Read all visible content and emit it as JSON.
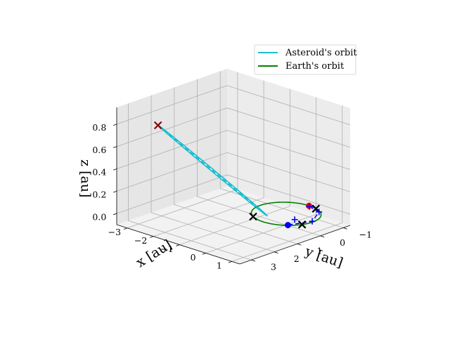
{
  "chart_data": {
    "type": "line3d",
    "title": "",
    "xlabel": "x [au]",
    "ylabel": "y [au]",
    "zlabel": "z [au]",
    "xlim": [
      -3.4,
      1.3
    ],
    "ylim": [
      -1.3,
      3.5
    ],
    "zlim": [
      -0.1,
      0.95
    ],
    "x_ticks": [
      -3,
      -2,
      -1,
      0,
      1
    ],
    "y_ticks": [
      -1,
      0,
      1,
      2,
      3
    ],
    "z_ticks": [
      0.0,
      0.2,
      0.4,
      0.6,
      0.8
    ],
    "x_tick_labels": [
      "−3",
      "−2",
      "−1",
      "0",
      "1"
    ],
    "y_tick_labels": [
      "−1",
      "0",
      "1",
      "2",
      "3"
    ],
    "z_tick_labels": [
      "0.0",
      "0.2",
      "0.4",
      "0.6",
      "0.8"
    ],
    "grid": true,
    "legend_position": "top-right",
    "colors": {
      "asteroid_orbit": "#17becf",
      "earth_orbit": "#008000",
      "transfer": "#0000ff",
      "crossing_marker": "#000000",
      "apex_marker": "#8b0000",
      "red_point": "#ff0000",
      "blue_point": "#0000ff"
    },
    "series": [
      {
        "name": "Asteroid's orbit",
        "kind": "ellipse",
        "center": [
          -1.15,
          1.9,
          0.44
        ],
        "axis_a": [
          -0.85,
          1.4,
          0.44
        ],
        "axis_b": [
          0.48,
          0.29,
          0.0
        ]
      },
      {
        "name": "Earth's orbit",
        "kind": "circle",
        "center": [
          0,
          0,
          0
        ],
        "radius": 1
      }
    ],
    "lines": [
      {
        "role": "asteroid-apsis-line",
        "style": "dashed",
        "from": [
          -2.0,
          3.3,
          0.88
        ],
        "to": [
          -0.3,
          0.5,
          0.0
        ]
      },
      {
        "role": "transfer-arc",
        "style": "dashed",
        "points": [
          [
            0.05,
            -0.95,
            0
          ],
          [
            0.55,
            -0.8,
            0
          ],
          [
            0.95,
            -0.05,
            0
          ],
          [
            0.68,
            0.7,
            0
          ]
        ]
      }
    ],
    "points": [
      {
        "role": "asteroid-apex",
        "marker": "x",
        "x": -2.0,
        "y": 3.3,
        "z": 0.88
      },
      {
        "role": "earth-node-left",
        "marker": "x",
        "x": -0.5,
        "y": 0.87,
        "z": 0
      },
      {
        "role": "earth-node-right",
        "marker": "x",
        "x": 0.3,
        "y": -0.95,
        "z": 0
      },
      {
        "role": "earth-node-front",
        "marker": "x",
        "x": 0.93,
        "y": 0.37,
        "z": 0
      },
      {
        "role": "red-target",
        "marker": "o",
        "x": 0.0,
        "y": -0.99,
        "z": 0
      },
      {
        "role": "blue-start",
        "marker": "o",
        "x": 0.68,
        "y": 0.7,
        "z": 0
      },
      {
        "role": "transfer-waypoint-1",
        "marker": "+",
        "x": 0.05,
        "y": -0.95,
        "z": 0
      },
      {
        "role": "transfer-waypoint-2",
        "marker": "+",
        "x": 0.55,
        "y": -0.8,
        "z": 0
      },
      {
        "role": "transfer-waypoint-3",
        "marker": "+",
        "x": 0.95,
        "y": -0.05,
        "z": 0
      },
      {
        "role": "transfer-waypoint-4",
        "marker": "+",
        "x": 0.5,
        "y": 0.2,
        "z": 0
      }
    ]
  }
}
